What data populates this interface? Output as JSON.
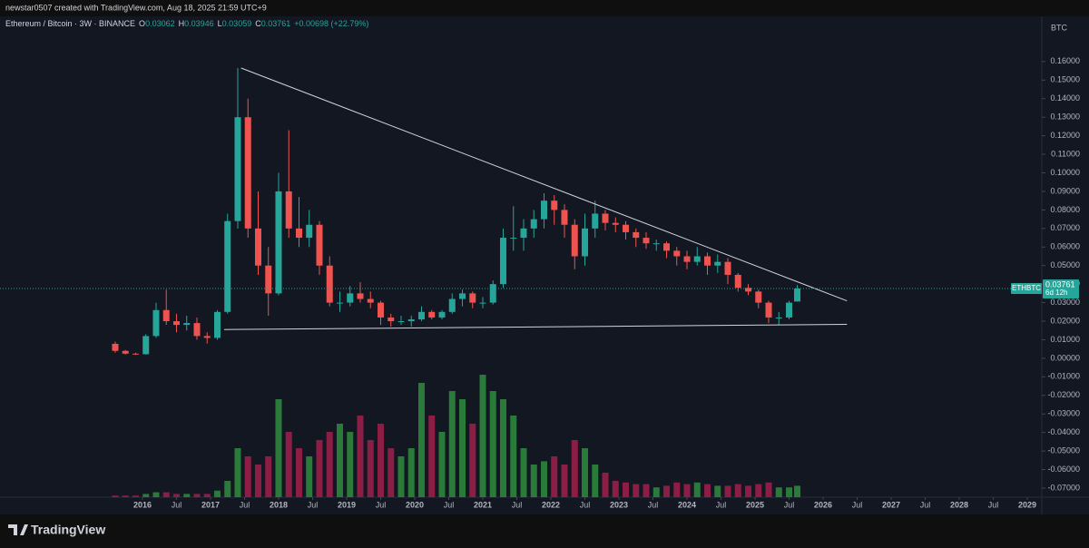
{
  "chart_data": {
    "type": "candlestick",
    "header": "newstar0507 created with TradingView.com, Aug 18, 2025 21:59 UTC+9",
    "legend": {
      "symbol": "Ethereum / Bitcoin · 3W · BINANCE",
      "items": [
        {
          "key": "O",
          "value": "0.03062"
        },
        {
          "key": "H",
          "value": "0.03946"
        },
        {
          "key": "L",
          "value": "0.03059"
        },
        {
          "key": "C",
          "value": "0.03761"
        }
      ],
      "change": "+0.00698 (+22.79%)"
    },
    "currency": "BTC",
    "price_tag": {
      "symbol": "ETHBTC",
      "price": "0.03761",
      "countdown": "6d 12h"
    },
    "brand": "TradingView",
    "x": [
      2015.6,
      2015.75,
      2015.9,
      2016.05,
      2016.2,
      2016.35,
      2016.5,
      2016.65,
      2016.8,
      2016.95,
      2017.1,
      2017.25,
      2017.4,
      2017.55,
      2017.7,
      2017.85,
      2018.0,
      2018.15,
      2018.3,
      2018.45,
      2018.6,
      2018.75,
      2018.9,
      2019.05,
      2019.2,
      2019.35,
      2019.5,
      2019.65,
      2019.8,
      2019.95,
      2020.1,
      2020.25,
      2020.4,
      2020.55,
      2020.7,
      2020.85,
      2021.0,
      2021.15,
      2021.3,
      2021.45,
      2021.6,
      2021.75,
      2021.9,
      2022.05,
      2022.2,
      2022.35,
      2022.5,
      2022.65,
      2022.8,
      2022.95,
      2023.1,
      2023.25,
      2023.4,
      2023.55,
      2023.7,
      2023.85,
      2024.0,
      2024.15,
      2024.3,
      2024.45,
      2024.6,
      2024.75,
      2024.9,
      2025.05,
      2025.2,
      2025.35,
      2025.5,
      2025.62
    ],
    "open": [
      0.0078,
      0.004,
      0.0025,
      0.0022,
      0.012,
      0.026,
      0.02,
      0.018,
      0.019,
      0.012,
      0.011,
      0.025,
      0.074,
      0.13,
      0.07,
      0.05,
      0.035,
      0.09,
      0.07,
      0.065,
      0.072,
      0.05,
      0.03,
      0.03,
      0.035,
      0.032,
      0.03,
      0.022,
      0.02,
      0.02,
      0.021,
      0.025,
      0.022,
      0.025,
      0.032,
      0.035,
      0.03,
      0.03,
      0.04,
      0.065,
      0.065,
      0.07,
      0.075,
      0.085,
      0.08,
      0.072,
      0.055,
      0.07,
      0.078,
      0.073,
      0.072,
      0.068,
      0.065,
      0.062,
      0.062,
      0.058,
      0.055,
      0.052,
      0.055,
      0.05,
      0.052,
      0.045,
      0.038,
      0.036,
      0.03,
      0.022,
      0.022,
      0.03062
    ],
    "high": [
      0.009,
      0.0045,
      0.003,
      0.013,
      0.03,
      0.037,
      0.024,
      0.023,
      0.022,
      0.014,
      0.026,
      0.078,
      0.1565,
      0.14,
      0.09,
      0.06,
      0.1,
      0.123,
      0.087,
      0.08,
      0.074,
      0.055,
      0.036,
      0.039,
      0.041,
      0.036,
      0.031,
      0.024,
      0.023,
      0.023,
      0.028,
      0.026,
      0.026,
      0.035,
      0.037,
      0.036,
      0.033,
      0.042,
      0.07,
      0.082,
      0.075,
      0.08,
      0.089,
      0.088,
      0.083,
      0.075,
      0.078,
      0.085,
      0.08,
      0.076,
      0.074,
      0.07,
      0.068,
      0.064,
      0.063,
      0.06,
      0.058,
      0.06,
      0.057,
      0.056,
      0.054,
      0.046,
      0.04,
      0.037,
      0.031,
      0.025,
      0.031,
      0.03946
    ],
    "low": [
      0.003,
      0.002,
      0.0018,
      0.002,
      0.011,
      0.018,
      0.014,
      0.015,
      0.01,
      0.008,
      0.01,
      0.024,
      0.07,
      0.065,
      0.045,
      0.023,
      0.034,
      0.065,
      0.06,
      0.06,
      0.045,
      0.028,
      0.025,
      0.028,
      0.03,
      0.027,
      0.018,
      0.017,
      0.018,
      0.017,
      0.02,
      0.021,
      0.021,
      0.024,
      0.028,
      0.027,
      0.027,
      0.029,
      0.038,
      0.058,
      0.058,
      0.065,
      0.07,
      0.072,
      0.065,
      0.048,
      0.05,
      0.065,
      0.069,
      0.068,
      0.064,
      0.06,
      0.059,
      0.058,
      0.054,
      0.05,
      0.048,
      0.05,
      0.045,
      0.046,
      0.04,
      0.036,
      0.034,
      0.027,
      0.019,
      0.018,
      0.021,
      0.03059
    ],
    "close": [
      0.004,
      0.0025,
      0.0022,
      0.012,
      0.026,
      0.02,
      0.018,
      0.019,
      0.012,
      0.011,
      0.025,
      0.074,
      0.13,
      0.07,
      0.05,
      0.035,
      0.09,
      0.07,
      0.065,
      0.072,
      0.05,
      0.03,
      0.03,
      0.035,
      0.032,
      0.03,
      0.022,
      0.02,
      0.02,
      0.021,
      0.025,
      0.022,
      0.025,
      0.032,
      0.035,
      0.03,
      0.03,
      0.04,
      0.065,
      0.065,
      0.07,
      0.075,
      0.085,
      0.08,
      0.072,
      0.055,
      0.07,
      0.078,
      0.073,
      0.072,
      0.068,
      0.065,
      0.062,
      0.062,
      0.058,
      0.055,
      0.052,
      0.055,
      0.05,
      0.052,
      0.045,
      0.038,
      0.036,
      0.03,
      0.022,
      0.022,
      0.03,
      0.03761
    ],
    "volume": [
      1,
      1,
      1,
      2,
      3,
      3,
      2,
      2,
      2,
      2,
      4,
      10,
      30,
      25,
      20,
      25,
      60,
      40,
      30,
      25,
      35,
      40,
      45,
      40,
      50,
      35,
      45,
      30,
      25,
      30,
      70,
      50,
      40,
      65,
      60,
      45,
      75,
      65,
      60,
      50,
      30,
      20,
      22,
      25,
      20,
      35,
      30,
      20,
      15,
      10,
      9,
      8,
      8,
      6,
      7,
      9,
      8,
      9,
      8,
      7,
      7,
      8,
      7,
      8,
      9,
      6,
      6,
      7
    ],
    "up_color": "#26a69a",
    "down_color": "#ef5350",
    "volume_up_color": "#2a7a3a",
    "volume_down_color": "#8c1d45",
    "trendlines": [
      {
        "x": [
          2017.45,
          2026.35
        ],
        "y": [
          0.1565,
          0.031
        ]
      },
      {
        "x": [
          2017.2,
          2026.35
        ],
        "y": [
          0.0155,
          0.0183
        ]
      }
    ],
    "xlim": [
      2013.907,
      2029.213
    ],
    "ylim": [
      -0.0749,
      0.1844
    ],
    "grid": false,
    "yticks": [
      {
        "value": 0.16,
        "label": "0.16000"
      },
      {
        "value": 0.15,
        "label": "0.15000"
      },
      {
        "value": 0.14,
        "label": "0.14000"
      },
      {
        "value": 0.13,
        "label": "0.13000"
      },
      {
        "value": 0.12,
        "label": "0.12000"
      },
      {
        "value": 0.11,
        "label": "0.11000"
      },
      {
        "value": 0.1,
        "label": "0.10000"
      },
      {
        "value": 0.09,
        "label": "0.09000"
      },
      {
        "value": 0.08,
        "label": "0.08000"
      },
      {
        "value": 0.07,
        "label": "0.07000"
      },
      {
        "value": 0.06,
        "label": "0.06000"
      },
      {
        "value": 0.05,
        "label": "0.05000"
      },
      {
        "value": 0.04,
        "label": "0.04000"
      },
      {
        "value": 0.03,
        "label": "0.03000"
      },
      {
        "value": 0.02,
        "label": "0.02000"
      },
      {
        "value": 0.01,
        "label": "0.01000"
      },
      {
        "value": 0,
        "label": "0.00000"
      },
      {
        "value": -0.01,
        "label": "-0.01000"
      },
      {
        "value": -0.02,
        "label": "-0.02000"
      },
      {
        "value": -0.03,
        "label": "-0.03000"
      },
      {
        "value": -0.04,
        "label": "-0.04000"
      },
      {
        "value": -0.05,
        "label": "-0.05000"
      },
      {
        "value": -0.06,
        "label": "-0.06000"
      },
      {
        "value": -0.07,
        "label": "-0.07000"
      }
    ],
    "xticks": [
      2016,
      {
        "value": 2016.5,
        "label": "Jul"
      },
      2017,
      {
        "value": 2017.5,
        "label": "Jul"
      },
      2018,
      {
        "value": 2018.5,
        "label": "Jul"
      },
      2019,
      {
        "value": 2019.5,
        "label": "Jul"
      },
      2020,
      {
        "value": 2020.5,
        "label": "Jul"
      },
      2021,
      {
        "value": 2021.5,
        "label": "Jul"
      },
      2022,
      {
        "value": 2022.5,
        "label": "Jul"
      },
      2023,
      {
        "value": 2023.5,
        "label": "Jul"
      },
      2024,
      {
        "value": 2024.5,
        "label": "Jul"
      },
      2025,
      {
        "value": 2025.5,
        "label": "Jul"
      },
      2026,
      {
        "value": 2026.5,
        "label": "Jul"
      },
      2027,
      {
        "value": 2027.5,
        "label": "Jul"
      },
      2028,
      {
        "value": 2028.5,
        "label": "Jul"
      },
      2029
    ]
  }
}
